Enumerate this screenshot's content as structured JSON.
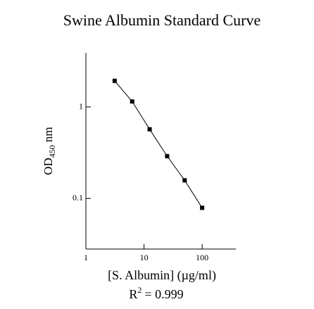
{
  "chart_data": {
    "type": "line",
    "title": "Swine Albumin Standard Curve",
    "x_label": "[S. Albumin] (µg/ml)",
    "y_label": [
      "OD",
      "450",
      "nm"
    ],
    "annotation": [
      "R",
      "2",
      "= 0.999"
    ],
    "x": [
      3.125,
      6.25,
      12.5,
      25,
      50,
      100
    ],
    "series": [
      {
        "name": "OD450",
        "color": "#000000",
        "values": [
          1.93,
          1.15,
          0.57,
          0.29,
          0.158,
          0.079
        ]
      }
    ],
    "x_log": true,
    "y_log": true,
    "xlim": [
      1,
      380
    ],
    "ylim": [
      0.028,
      3.9
    ],
    "xticks": [
      1,
      10,
      100
    ],
    "yticks": [
      0.1,
      1
    ]
  }
}
